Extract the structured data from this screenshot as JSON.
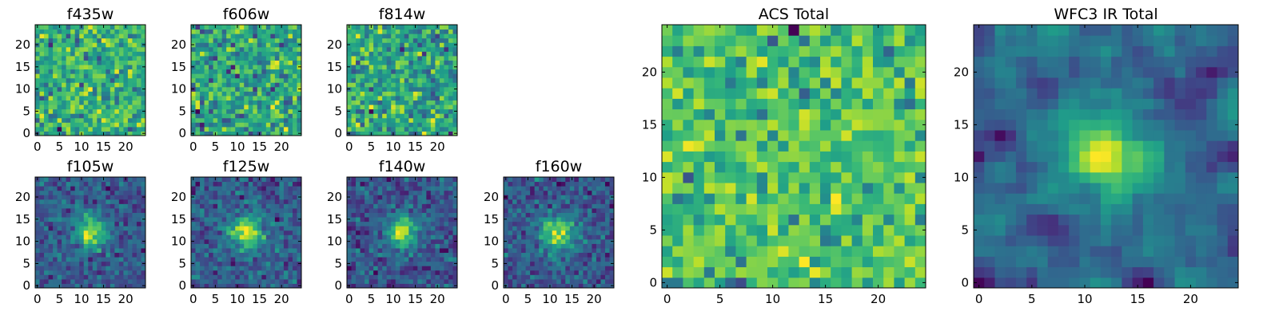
{
  "figure": {
    "colormap": "viridis",
    "colors": {
      "low": "#440154",
      "mid": "#21918c",
      "high": "#fde725",
      "frame": "#000000"
    }
  },
  "chart_data": [
    {
      "type": "heatmap",
      "title": "f435w",
      "xlim": [
        -0.5,
        24.5
      ],
      "ylim": [
        -0.5,
        24.5
      ],
      "x_ticks": [
        "0",
        "5",
        "10",
        "15",
        "20"
      ],
      "y_ticks": [
        "0",
        "5",
        "10",
        "15",
        "20"
      ],
      "grid": false,
      "pattern": "noise",
      "seed": 11
    },
    {
      "type": "heatmap",
      "title": "f606w",
      "xlim": [
        -0.5,
        24.5
      ],
      "ylim": [
        -0.5,
        24.5
      ],
      "x_ticks": [
        "0",
        "5",
        "10",
        "15",
        "20"
      ],
      "y_ticks": [
        "0",
        "5",
        "10",
        "15",
        "20"
      ],
      "grid": false,
      "pattern": "noise",
      "seed": 23
    },
    {
      "type": "heatmap",
      "title": "f814w",
      "xlim": [
        -0.5,
        24.5
      ],
      "ylim": [
        -0.5,
        24.5
      ],
      "x_ticks": [
        "0",
        "5",
        "10",
        "15",
        "20"
      ],
      "y_ticks": [
        "0",
        "5",
        "10",
        "15",
        "20"
      ],
      "grid": false,
      "pattern": "noise",
      "seed": 37
    },
    {
      "type": "heatmap",
      "title": "f105w",
      "xlim": [
        -0.5,
        24.5
      ],
      "ylim": [
        -0.5,
        24.5
      ],
      "x_ticks": [
        "0",
        "5",
        "10",
        "15",
        "20"
      ],
      "y_ticks": [
        "0",
        "5",
        "10",
        "15",
        "20"
      ],
      "grid": false,
      "pattern": "source",
      "seed": 41
    },
    {
      "type": "heatmap",
      "title": "f125w",
      "xlim": [
        -0.5,
        24.5
      ],
      "ylim": [
        -0.5,
        24.5
      ],
      "x_ticks": [
        "0",
        "5",
        "10",
        "15",
        "20"
      ],
      "y_ticks": [
        "0",
        "5",
        "10",
        "15",
        "20"
      ],
      "grid": false,
      "pattern": "source",
      "seed": 53
    },
    {
      "type": "heatmap",
      "title": "f140w",
      "xlim": [
        -0.5,
        24.5
      ],
      "ylim": [
        -0.5,
        24.5
      ],
      "x_ticks": [
        "0",
        "5",
        "10",
        "15",
        "20"
      ],
      "y_ticks": [
        "0",
        "5",
        "10",
        "15",
        "20"
      ],
      "grid": false,
      "pattern": "source",
      "seed": 67
    },
    {
      "type": "heatmap",
      "title": "f160w",
      "xlim": [
        -0.5,
        24.5
      ],
      "ylim": [
        -0.5,
        24.5
      ],
      "x_ticks": [
        "0",
        "5",
        "10",
        "15",
        "20"
      ],
      "y_ticks": [
        "0",
        "5",
        "10",
        "15",
        "20"
      ],
      "grid": false,
      "pattern": "source",
      "seed": 79
    },
    {
      "type": "heatmap",
      "title": "ACS Total",
      "xlim": [
        -0.5,
        24.5
      ],
      "ylim": [
        -0.5,
        24.5
      ],
      "x_ticks": [
        "0",
        "5",
        "10",
        "15",
        "20"
      ],
      "y_ticks": [
        "0",
        "5",
        "10",
        "15",
        "20"
      ],
      "grid": false,
      "pattern": "noise_high",
      "seed": 97
    },
    {
      "type": "heatmap",
      "title": "WFC3 IR Total",
      "xlim": [
        -0.5,
        24.5
      ],
      "ylim": [
        -0.5,
        24.5
      ],
      "x_ticks": [
        "0",
        "5",
        "10",
        "15",
        "20"
      ],
      "y_ticks": [
        "0",
        "5",
        "10",
        "15",
        "20"
      ],
      "grid": false,
      "pattern": "source_smooth",
      "seed": 113
    }
  ]
}
